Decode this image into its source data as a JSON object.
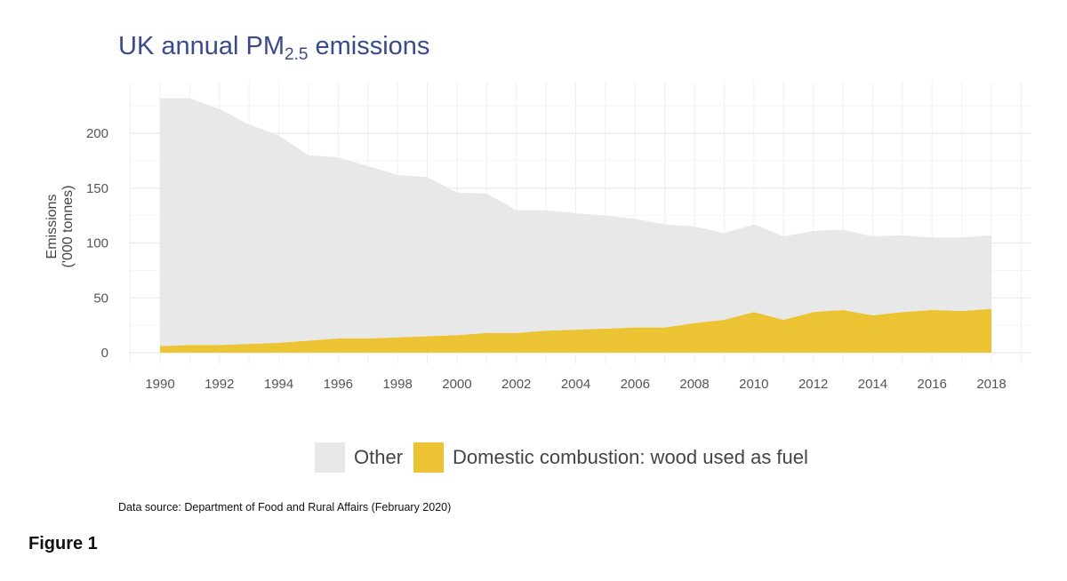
{
  "chart_data": {
    "type": "area",
    "stacked": true,
    "title_main": "UK annual PM",
    "title_sub": "2.5",
    "title_rest": " emissions",
    "ylabel_line1": "Emissions",
    "ylabel_line2": "('000 tonnes)",
    "xlabel": "",
    "ylim": [
      0,
      240
    ],
    "xlim": [
      1989,
      2019
    ],
    "yticks": [
      0,
      50,
      100,
      150,
      200
    ],
    "xticks": [
      1990,
      1992,
      1994,
      1996,
      1998,
      2000,
      2002,
      2004,
      2006,
      2008,
      2010,
      2012,
      2014,
      2016,
      2018
    ],
    "grid": true,
    "legend_position": "bottom",
    "x": [
      1990,
      1991,
      1992,
      1993,
      1994,
      1995,
      1996,
      1997,
      1998,
      1999,
      2000,
      2001,
      2002,
      2003,
      2004,
      2005,
      2006,
      2007,
      2008,
      2009,
      2010,
      2011,
      2012,
      2013,
      2014,
      2015,
      2016,
      2017,
      2018
    ],
    "series": [
      {
        "name": "Domestic combustion: wood used as fuel",
        "color": "#ecc332",
        "values": [
          6,
          7,
          7,
          8,
          9,
          11,
          13,
          13,
          14,
          15,
          16,
          18,
          18,
          20,
          21,
          22,
          23,
          23,
          27,
          30,
          37,
          30,
          37,
          39,
          34,
          37,
          39,
          38,
          40
        ]
      },
      {
        "name": "Other",
        "color": "#e8e8e8",
        "values": [
          226,
          225,
          215,
          200,
          189,
          169,
          165,
          157,
          148,
          145,
          130,
          127,
          112,
          110,
          106,
          103,
          99,
          94,
          88,
          79,
          80,
          76,
          74,
          73,
          72,
          70,
          66,
          67,
          67
        ]
      }
    ]
  },
  "legend": {
    "other": "Other",
    "wood": "Domestic combustion: wood used as fuel"
  },
  "source": "Data source: Department of Food and Rural Affairs (February 2020)",
  "figure_label": "Figure 1"
}
